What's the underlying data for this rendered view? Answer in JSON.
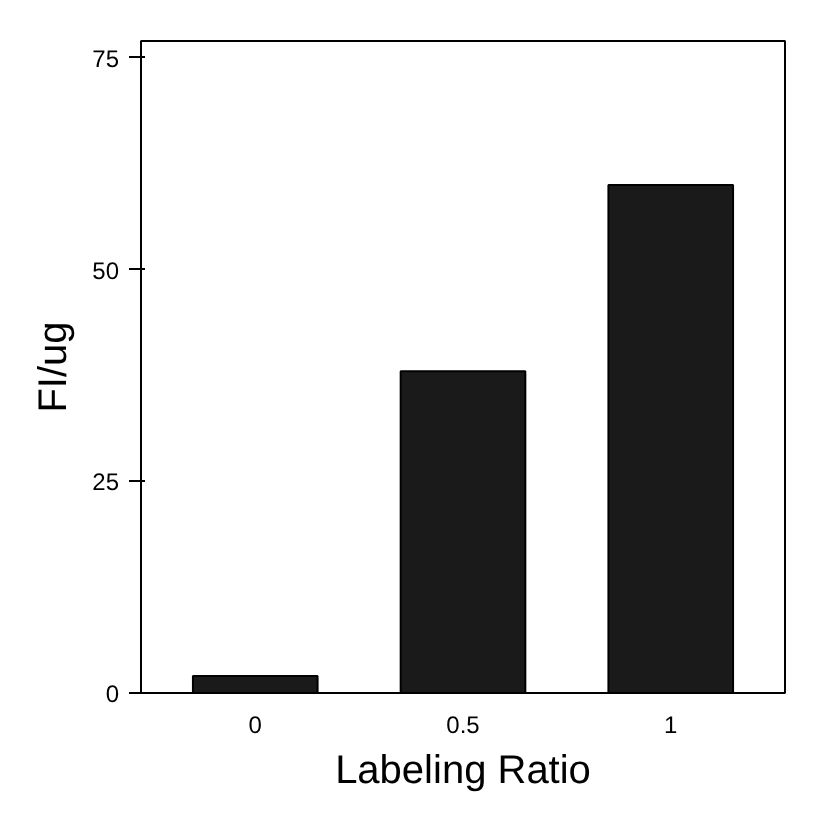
{
  "chart_data": {
    "type": "bar",
    "xlabel": "Labeling Ratio",
    "ylabel": "FI/ug",
    "categories": [
      "0",
      "0.5",
      "1"
    ],
    "values": [
      2,
      38,
      60
    ],
    "color": "#1a1a1a",
    "ylim": [
      0,
      77
    ],
    "yticks": [
      0,
      25,
      50,
      75
    ],
    "grid": false
  }
}
